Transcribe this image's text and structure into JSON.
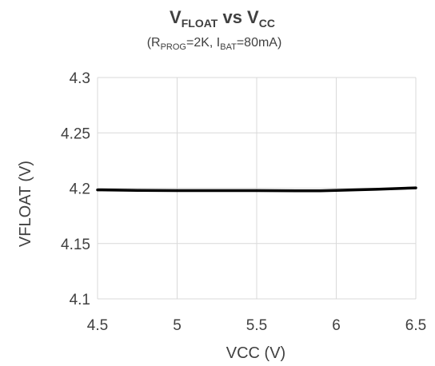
{
  "chart_data": {
    "type": "line",
    "title": {
      "main": "V",
      "main_sub": "FLOAT",
      "mid": " vs V",
      "mid_sub": "CC"
    },
    "subtitle": {
      "open": "(R",
      "prog_sub": "PROG",
      "mid": "=2K, I",
      "bat_sub": "BAT",
      "close": "=80mA)"
    },
    "xlabel": "VCC (V)",
    "ylabel": "VFLOAT  (V)",
    "xlim": [
      4.5,
      6.5
    ],
    "ylim": [
      4.1,
      4.3
    ],
    "x_ticks": [
      4.5,
      5,
      5.5,
      6,
      6.5
    ],
    "x_tick_labels": [
      "4.5",
      "5",
      "5.5",
      "6",
      "6.5"
    ],
    "y_ticks": [
      4.1,
      4.15,
      4.2,
      4.25,
      4.3
    ],
    "y_tick_labels": [
      "4.1",
      "4.15",
      "4.2",
      "4.25",
      "4.3"
    ],
    "grid": true,
    "series": [
      {
        "color": "#000000",
        "x": [
          4.5,
          4.75,
          5.0,
          5.25,
          5.5,
          5.75,
          5.9,
          6.0,
          6.25,
          6.5
        ],
        "y": [
          4.1985,
          4.198,
          4.1978,
          4.1978,
          4.1978,
          4.1977,
          4.1976,
          4.198,
          4.199,
          4.2003
        ]
      }
    ]
  }
}
